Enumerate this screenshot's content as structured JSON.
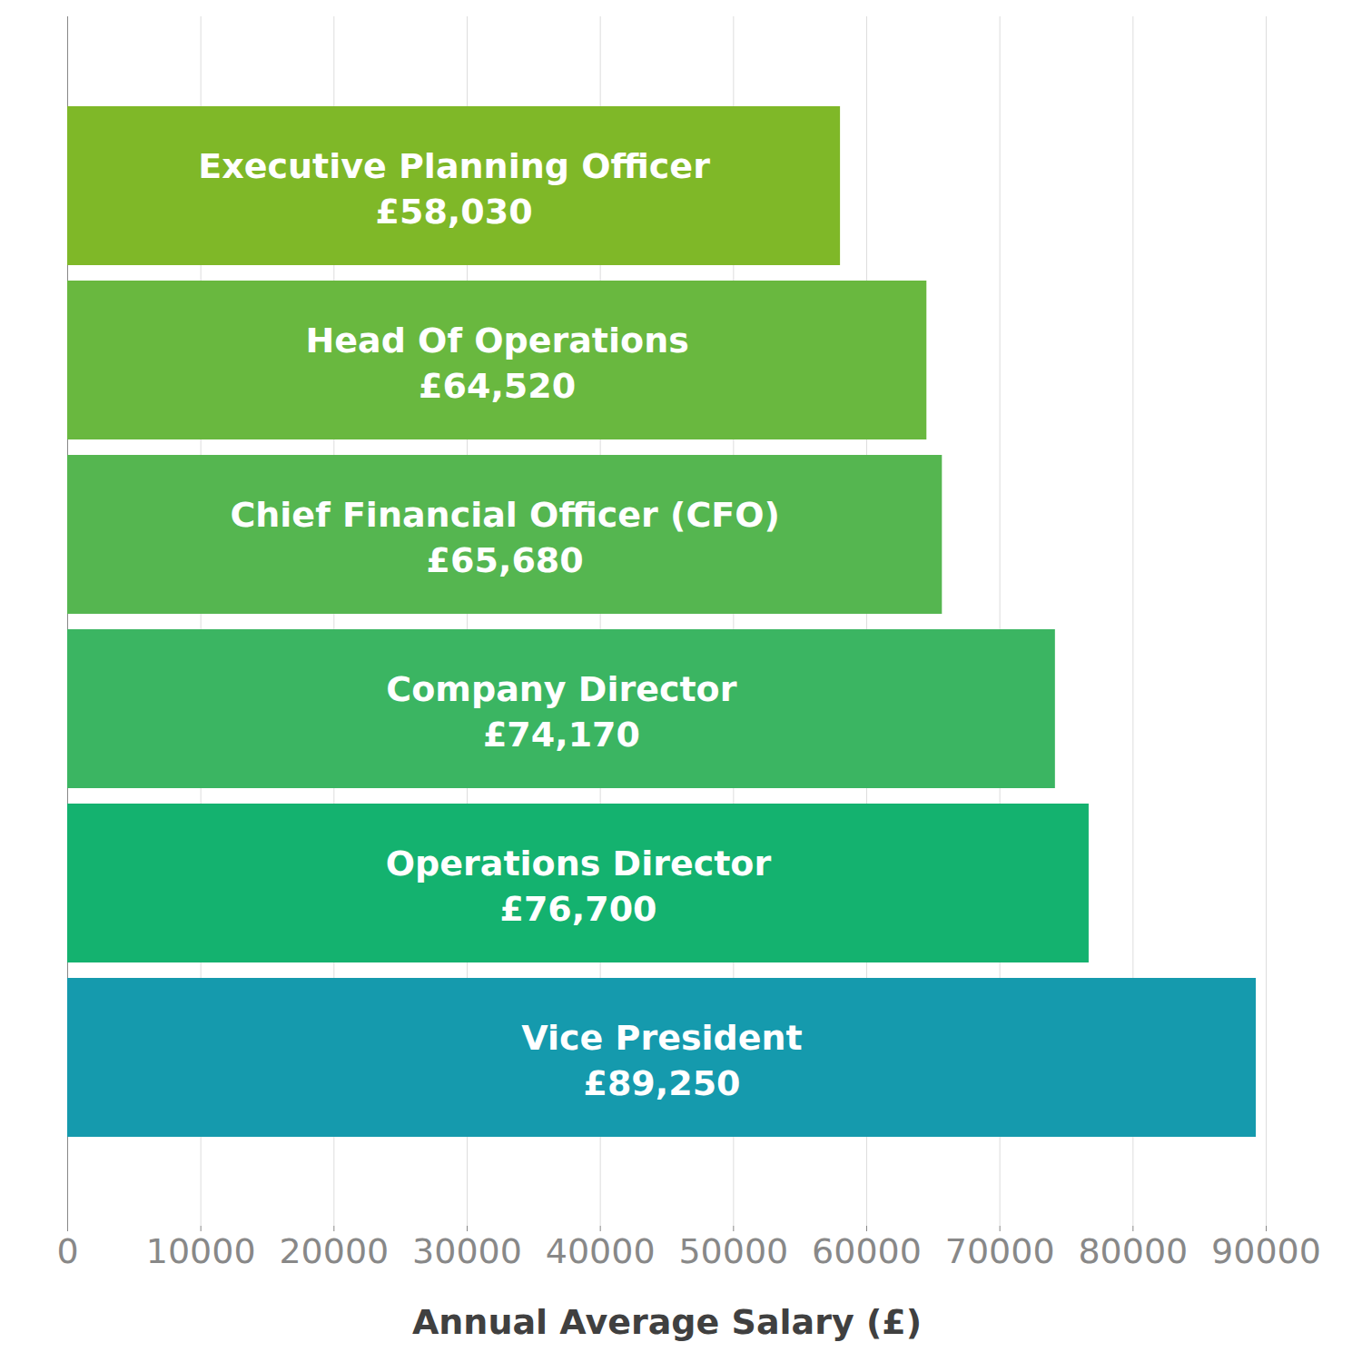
{
  "chart_data": {
    "type": "bar",
    "orientation": "horizontal",
    "x_label": "Annual Average Salary (£)",
    "categories": [
      "Executive Planning Officer",
      "Head Of Operations",
      "Chief Financial Officer (CFO)",
      "Company Director",
      "Operations Director",
      "Vice President"
    ],
    "values": [
      58030,
      64520,
      65680,
      74170,
      76700,
      89250
    ],
    "value_labels": [
      "£58,030",
      "£64,520",
      "£65,680",
      "£74,170",
      "£76,700",
      "£89,250"
    ],
    "colors": [
      "#7fb828",
      "#69b83f",
      "#55b650",
      "#3bb562",
      "#14b26f",
      "#159aad"
    ],
    "xlim": [
      0,
      90000
    ],
    "xticks": [
      0,
      10000,
      20000,
      30000,
      40000,
      50000,
      60000,
      70000,
      80000,
      90000
    ],
    "grid": true,
    "data_labels": true,
    "tick_labels": "x"
  }
}
